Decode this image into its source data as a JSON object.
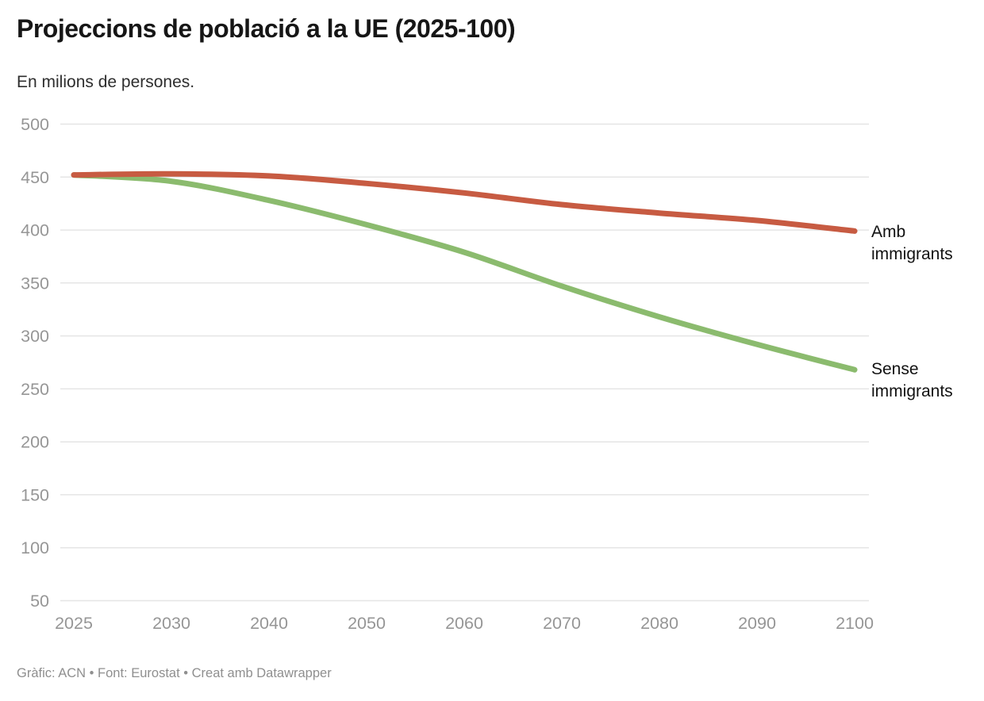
{
  "header": {
    "title": "Projeccions de població a la UE (2025-100)",
    "subtitle": "En milions de persones."
  },
  "footer": {
    "credit": "Gràfic: ACN • Font: Eurostat • Creat amb Datawrapper"
  },
  "colors": {
    "amb_line": "#c75b42",
    "sense_line": "#8bbb6e",
    "gridline": "#e5e5e5",
    "axis_text": "#969696",
    "annotation_text": "#121212"
  },
  "chart_data": {
    "type": "line",
    "title": "Projeccions de població a la UE (2025-100)",
    "subtitle": "En milions de persones.",
    "xlabel": "",
    "ylabel": "",
    "x_ticks": [
      "2025",
      "2030",
      "2040",
      "2050",
      "2060",
      "2070",
      "2080",
      "2090",
      "2100"
    ],
    "y_ticks": [
      500,
      450,
      400,
      350,
      300,
      250,
      200,
      150,
      100,
      50
    ],
    "ylim": [
      50,
      500
    ],
    "grid": true,
    "legend_position": "right-of-line-ends",
    "series": [
      {
        "name": "Sense immigrants",
        "color": "#8bbb6e",
        "values": [
          452,
          446,
          428,
          405,
          379,
          347,
          318,
          292,
          268
        ]
      },
      {
        "name": "Amb immigrants",
        "color": "#c75b42",
        "values": [
          452,
          453,
          451,
          444,
          435,
          424,
          416,
          409,
          399
        ]
      }
    ]
  }
}
